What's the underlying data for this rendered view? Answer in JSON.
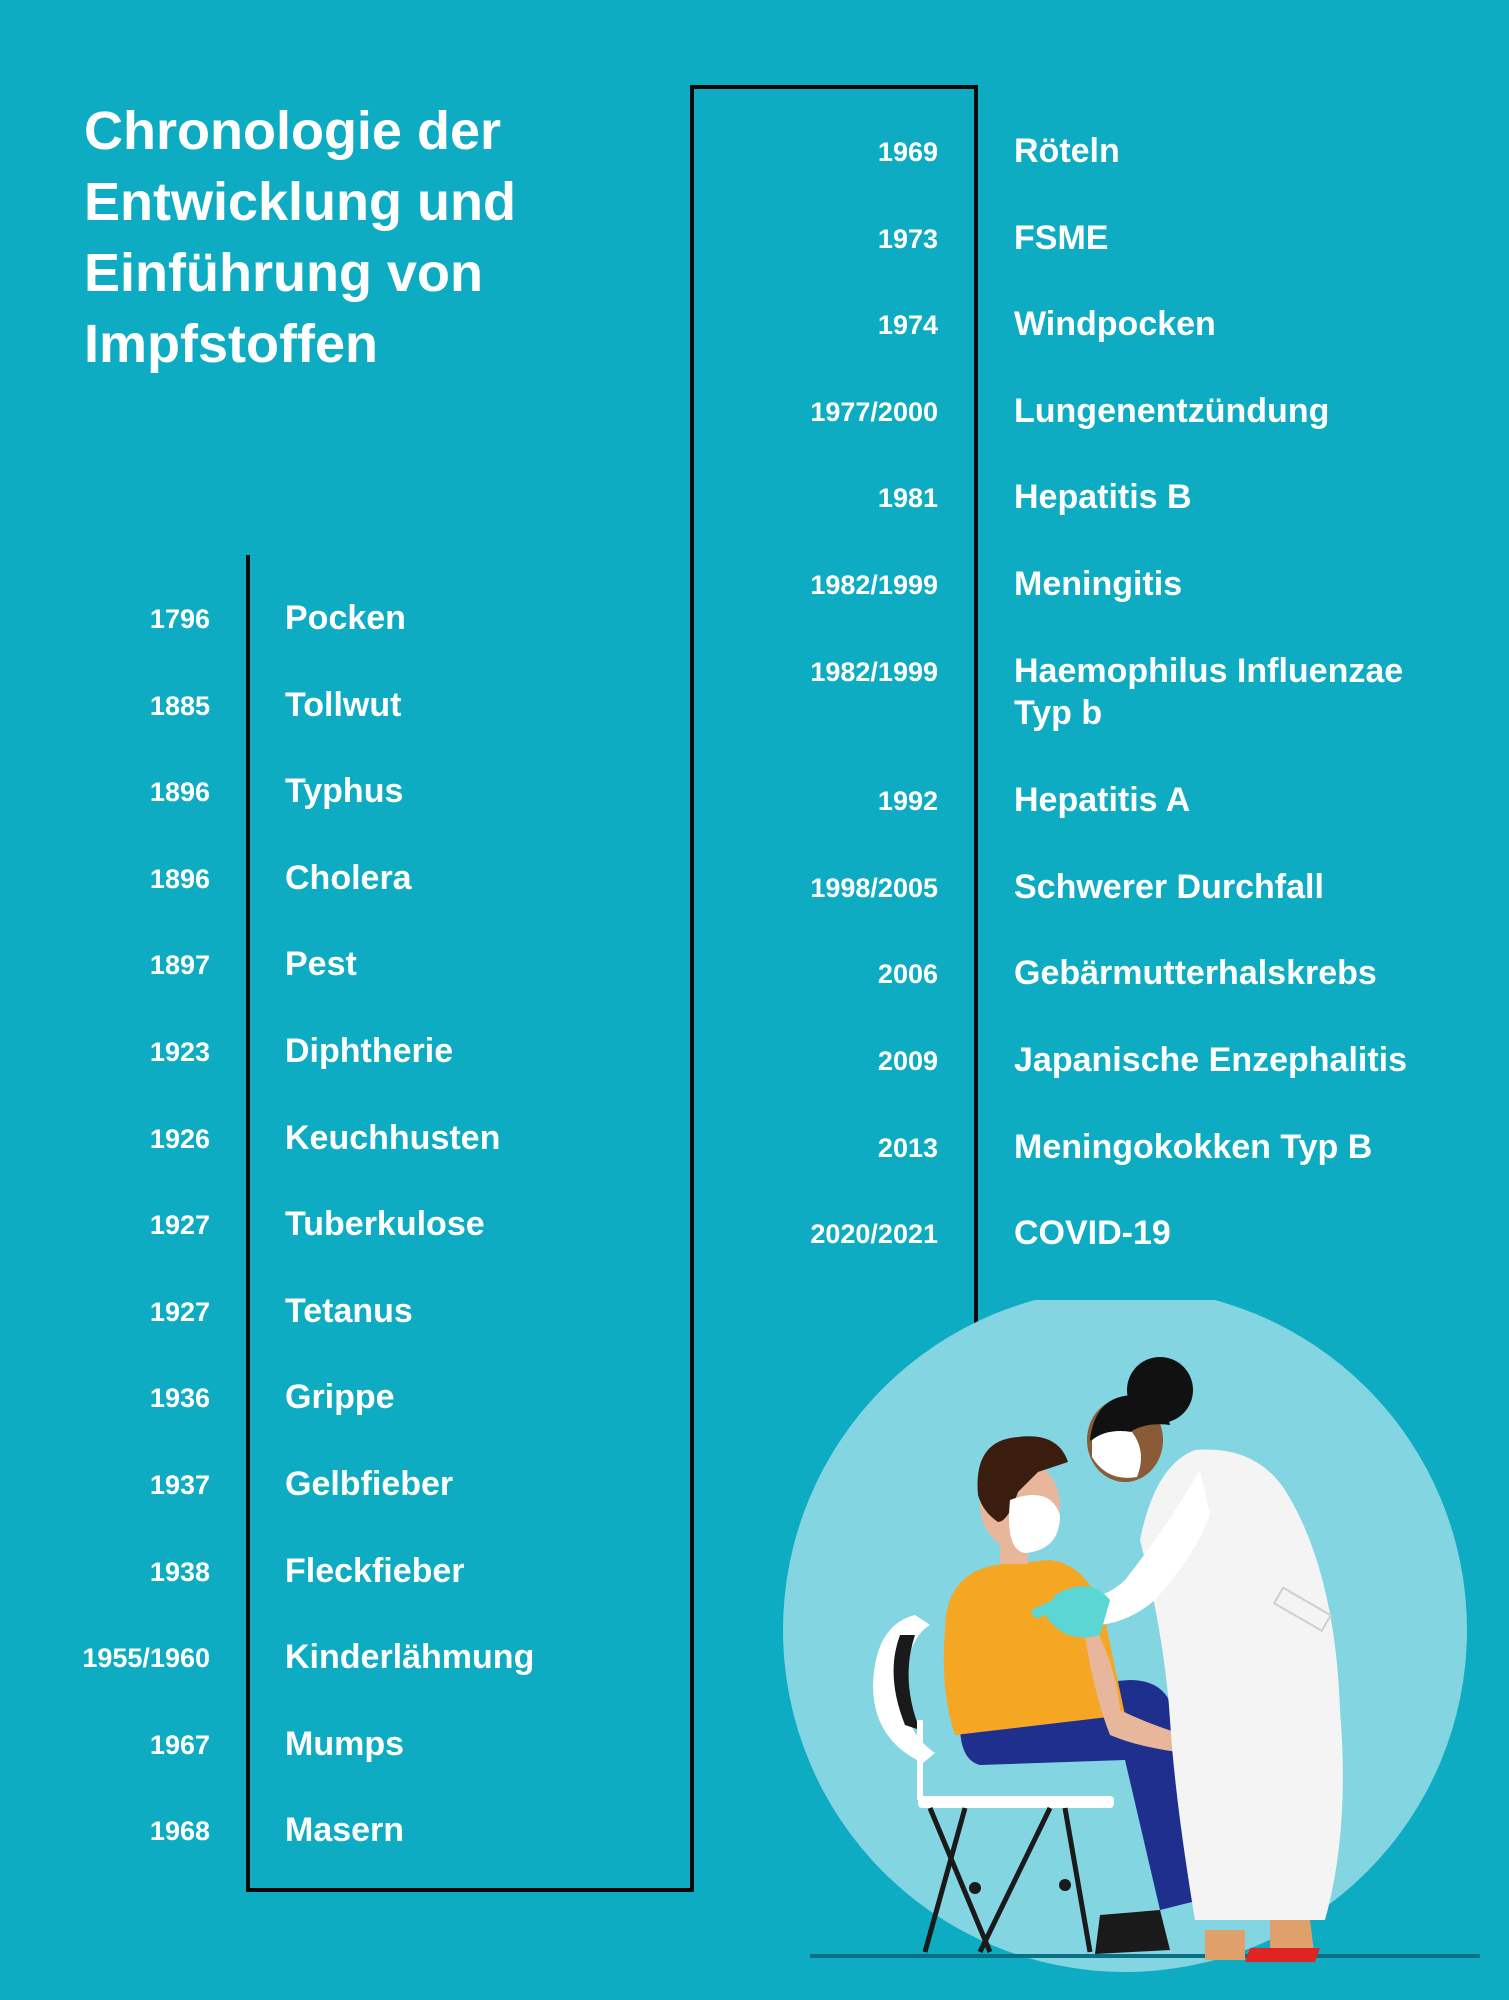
{
  "title": {
    "line1": "Chronologie der",
    "line2": "Entwicklung und",
    "line3": "Einführung von",
    "line4": "Impfstoffen"
  },
  "timeline_left": [
    {
      "year": "1796",
      "disease": "Pocken"
    },
    {
      "year": "1885",
      "disease": "Tollwut"
    },
    {
      "year": "1896",
      "disease": "Typhus"
    },
    {
      "year": "1896",
      "disease": "Cholera"
    },
    {
      "year": "1897",
      "disease": "Pest"
    },
    {
      "year": "1923",
      "disease": "Diphtherie"
    },
    {
      "year": "1926",
      "disease": "Keuchhusten"
    },
    {
      "year": "1927",
      "disease": "Tuberkulose"
    },
    {
      "year": "1927",
      "disease": "Tetanus"
    },
    {
      "year": "1936",
      "disease": "Grippe"
    },
    {
      "year": "1937",
      "disease": "Gelbfieber"
    },
    {
      "year": "1938",
      "disease": "Fleckfieber"
    },
    {
      "year": "1955/1960",
      "disease": "Kinderlähmung"
    },
    {
      "year": "1967",
      "disease": "Mumps"
    },
    {
      "year": "1968",
      "disease": "Masern"
    }
  ],
  "timeline_right": [
    {
      "year": "1969",
      "disease": "Röteln"
    },
    {
      "year": "1973",
      "disease": "FSME"
    },
    {
      "year": "1974",
      "disease": "Windpocken"
    },
    {
      "year": "1977/2000",
      "disease": "Lungenentzündung"
    },
    {
      "year": "1981",
      "disease": "Hepatitis B"
    },
    {
      "year": "1982/1999",
      "disease": "Meningitis"
    },
    {
      "year": "1982/1999",
      "disease": "Haemophilus Influenzae",
      "disease_line2": "Typ b"
    },
    {
      "year": "1992",
      "disease": "Hepatitis A"
    },
    {
      "year": "1998/2005",
      "disease": "Schwerer Durchfall"
    },
    {
      "year": "2006",
      "disease": "Gebärmutterhalskrebs"
    },
    {
      "year": "2009",
      "disease": "Japanische Enzephalitis"
    },
    {
      "year": "2013",
      "disease": "Meningokokken Typ B"
    },
    {
      "year": "2020/2021",
      "disease": "COVID-19"
    }
  ],
  "colors": {
    "background": "#0eacc2",
    "text": "#ffffff",
    "timeline_line": "#0a0a0a",
    "illustration_circle": "#84d5e2",
    "shirt": "#f5a623",
    "trousers": "#1f2f8e",
    "coat": "#ffffff",
    "glove": "#5ad6d4"
  },
  "illustration": {
    "subject": "doctor-vaccinating-patient",
    "icons": [
      "doctor-figure",
      "patient-figure",
      "chair",
      "syringe"
    ]
  }
}
